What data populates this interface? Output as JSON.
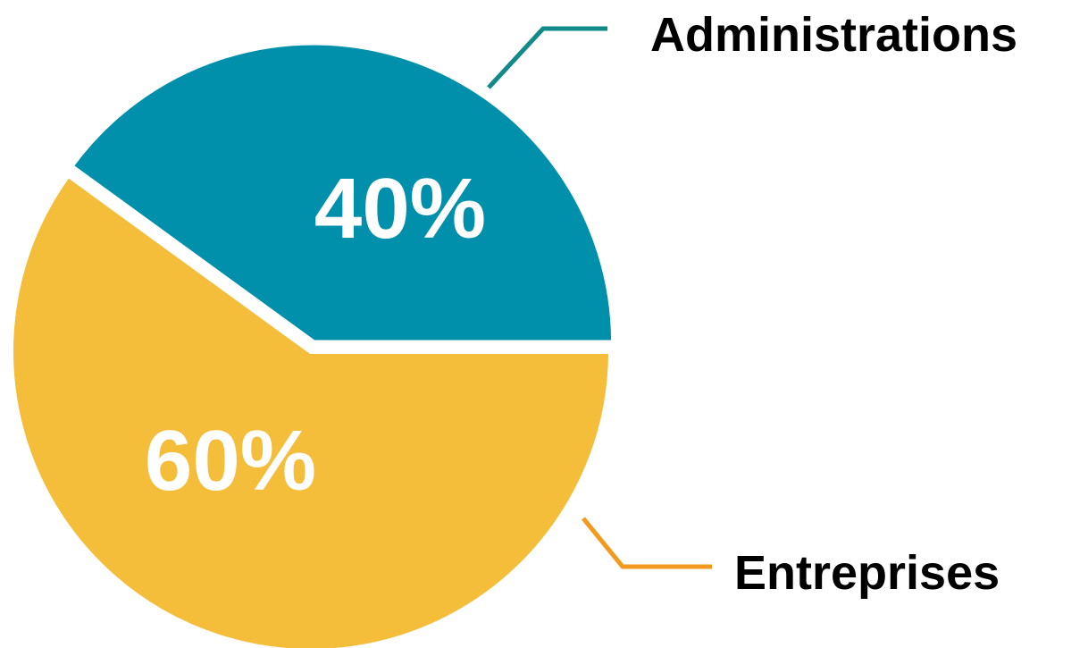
{
  "chart_data": {
    "type": "pie",
    "slices": [
      {
        "label": "Administrations",
        "value": 40,
        "value_label": "40%",
        "color": "#0090ab",
        "leader_color": "#138a8a",
        "exploded": true
      },
      {
        "label": "Entreprises",
        "value": 60,
        "value_label": "60%",
        "color": "#f4bd3a",
        "leader_color": "#f29a1f",
        "exploded": false
      }
    ],
    "legend": "callout labels with leader lines",
    "grid": false
  }
}
